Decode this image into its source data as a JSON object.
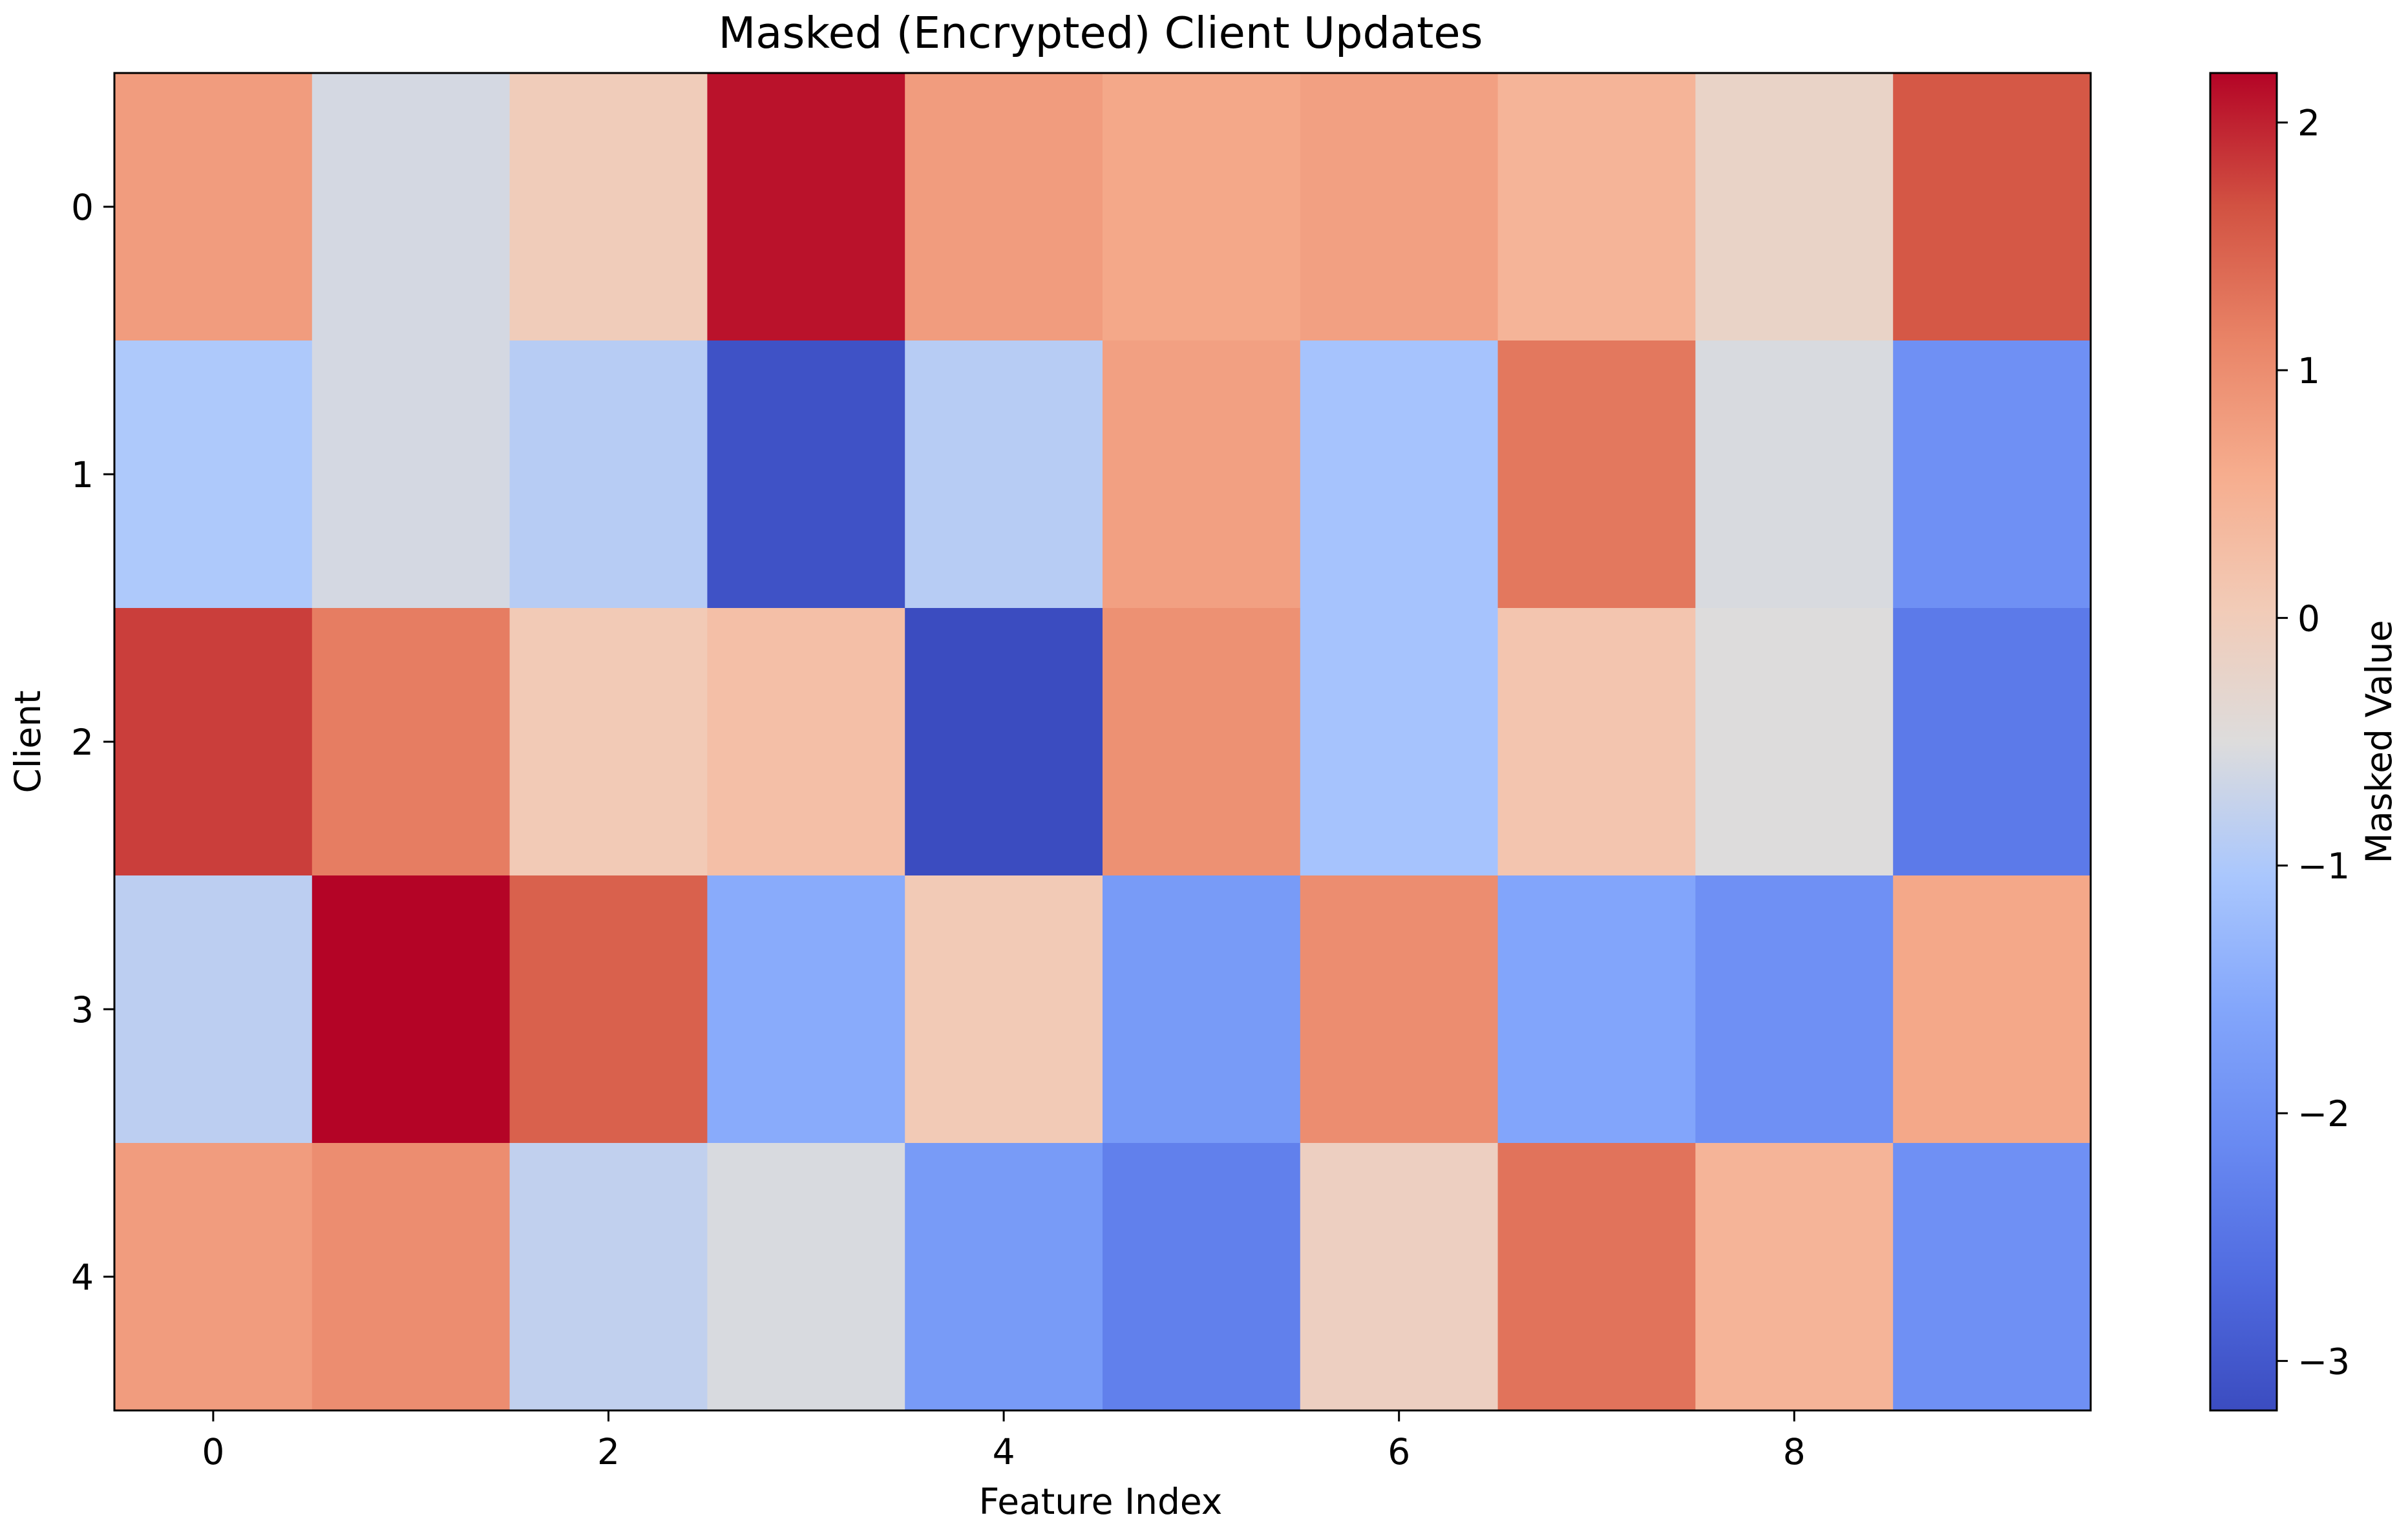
{
  "chart_data": {
    "type": "heatmap",
    "title": "Masked (Encrypted) Client Updates",
    "xlabel": "Feature Index",
    "ylabel": "Client",
    "colorbar_label": "Masked Value",
    "colormap": "coolwarm",
    "x_categories": [
      0,
      1,
      2,
      3,
      4,
      5,
      6,
      7,
      8,
      9
    ],
    "y_categories": [
      0,
      1,
      2,
      3,
      4
    ],
    "x_ticks": [
      "0",
      "2",
      "4",
      "6",
      "8"
    ],
    "y_ticks": [
      "0",
      "1",
      "2",
      "3",
      "4"
    ],
    "colorbar_ticks": [
      "2",
      "1",
      "0",
      "−1",
      "−2",
      "−3"
    ],
    "vmin": -3.2,
    "vmax": 2.2,
    "values": [
      [
        0.8,
        -0.6,
        0.0,
        2.1,
        0.8,
        0.65,
        0.75,
        0.45,
        -0.2,
        1.6
      ],
      [
        -1.0,
        -0.6,
        -0.9,
        -3.1,
        -0.9,
        0.75,
        -1.1,
        1.25,
        -0.55,
        -2.0
      ],
      [
        1.8,
        1.2,
        0.05,
        0.25,
        -3.2,
        0.95,
        -1.1,
        0.15,
        -0.5,
        -2.4
      ],
      [
        -0.85,
        2.2,
        1.5,
        -1.5,
        0.05,
        -1.8,
        1.0,
        -1.6,
        -2.0,
        0.65
      ],
      [
        0.8,
        1.0,
        -0.8,
        -0.55,
        -1.8,
        -2.3,
        -0.1,
        1.3,
        0.45,
        -2.0
      ]
    ]
  }
}
